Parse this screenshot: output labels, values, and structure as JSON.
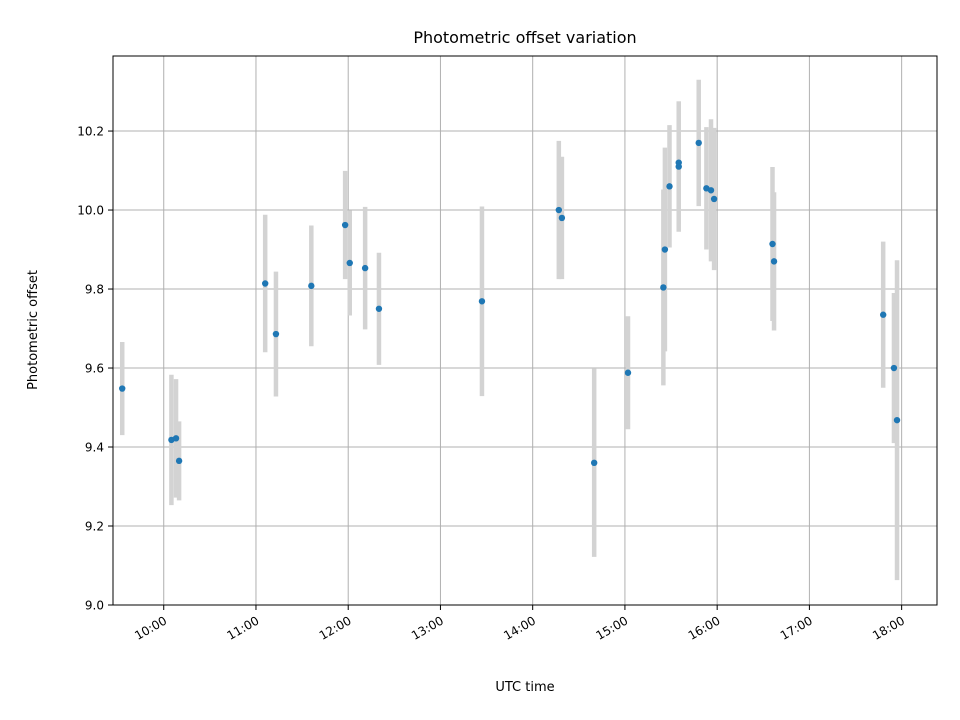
{
  "chart_data": {
    "type": "scatter",
    "title": "Photometric offset variation",
    "xlabel": "UTC time",
    "ylabel": "Photometric offset",
    "xlim": [
      "09:27",
      "18:23"
    ],
    "ylim": [
      9.0,
      10.39
    ],
    "xticks": [
      "10:00",
      "11:00",
      "12:00",
      "13:00",
      "14:00",
      "15:00",
      "16:00",
      "17:00",
      "18:00"
    ],
    "yticks": [
      "9.0",
      "9.2",
      "9.4",
      "9.6",
      "9.8",
      "10.0",
      "10.2"
    ],
    "grid": true,
    "marker_color": "#1f77b4",
    "errorbar_color": "#d3d3d3",
    "series": [
      {
        "points": [
          {
            "x": "09:33",
            "y": 9.548,
            "err": 0.118
          },
          {
            "x": "10:05",
            "y": 9.418,
            "err": 0.165
          },
          {
            "x": "10:08",
            "y": 9.422,
            "err": 0.15
          },
          {
            "x": "10:10",
            "y": 9.365,
            "err": 0.1
          },
          {
            "x": "11:06",
            "y": 9.814,
            "err": 0.174
          },
          {
            "x": "11:13",
            "y": 9.686,
            "err": 0.158
          },
          {
            "x": "11:36",
            "y": 9.808,
            "err": 0.153
          },
          {
            "x": "11:58",
            "y": 9.962,
            "err": 0.137
          },
          {
            "x": "12:01",
            "y": 9.866,
            "err": 0.133
          },
          {
            "x": "12:11",
            "y": 9.853,
            "err": 0.155
          },
          {
            "x": "12:20",
            "y": 9.75,
            "err": 0.142
          },
          {
            "x": "13:27",
            "y": 9.769,
            "err": 0.24
          },
          {
            "x": "14:17",
            "y": 10.0,
            "err": 0.175
          },
          {
            "x": "14:19",
            "y": 9.98,
            "err": 0.155
          },
          {
            "x": "14:40",
            "y": 9.36,
            "err": 0.238
          },
          {
            "x": "15:02",
            "y": 9.588,
            "err": 0.143
          },
          {
            "x": "15:25",
            "y": 9.804,
            "err": 0.248
          },
          {
            "x": "15:26",
            "y": 9.9,
            "err": 0.258
          },
          {
            "x": "15:29",
            "y": 10.06,
            "err": 0.155
          },
          {
            "x": "15:35",
            "y": 10.12,
            "err": 0.155
          },
          {
            "x": "15:35",
            "y": 10.11,
            "err": 0.165
          },
          {
            "x": "15:48",
            "y": 10.17,
            "err": 0.16
          },
          {
            "x": "15:53",
            "y": 10.055,
            "err": 0.155
          },
          {
            "x": "15:56",
            "y": 10.05,
            "err": 0.18
          },
          {
            "x": "15:58",
            "y": 10.028,
            "err": 0.18
          },
          {
            "x": "16:36",
            "y": 9.914,
            "err": 0.195
          },
          {
            "x": "16:37",
            "y": 9.87,
            "err": 0.175
          },
          {
            "x": "17:48",
            "y": 9.735,
            "err": 0.185
          },
          {
            "x": "17:55",
            "y": 9.6,
            "err": 0.19
          },
          {
            "x": "17:57",
            "y": 9.468,
            "err": 0.405
          }
        ]
      }
    ]
  }
}
